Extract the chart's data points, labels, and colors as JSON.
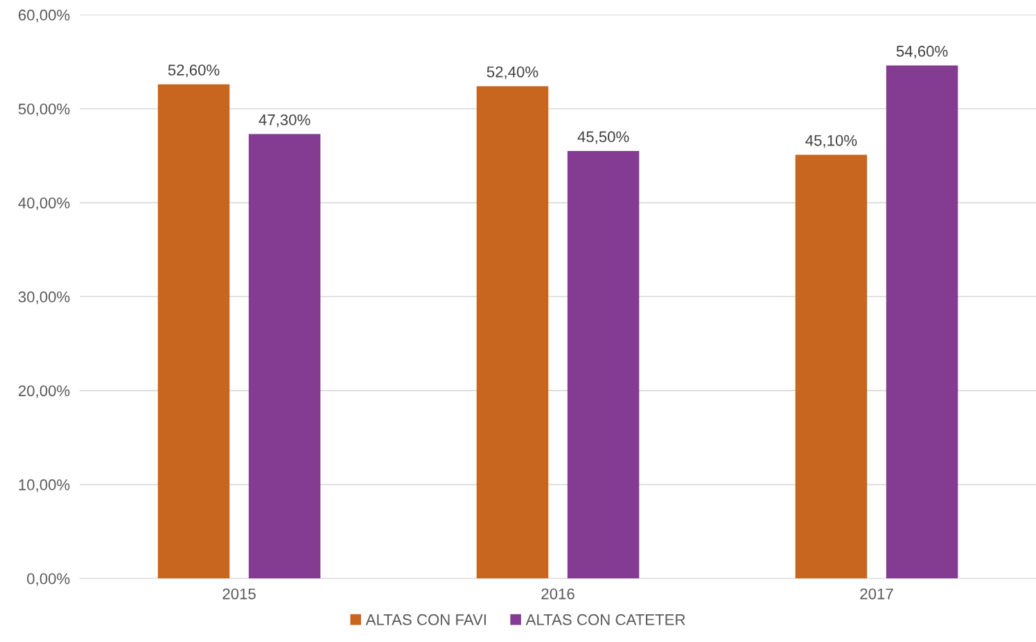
{
  "chart_data": {
    "type": "bar",
    "categories": [
      "2015",
      "2016",
      "2017"
    ],
    "series": [
      {
        "name": "ALTAS CON FAVI",
        "color": "#c8651e",
        "values": [
          52.6,
          52.4,
          45.1
        ],
        "value_labels": [
          "52,60%",
          "52,40%",
          "45,10%"
        ]
      },
      {
        "name": "ALTAS CON CATETER",
        "color": "#843c93",
        "values": [
          47.3,
          45.5,
          54.6
        ],
        "value_labels": [
          "47,30%",
          "45,50%",
          "54,60%"
        ]
      }
    ],
    "ylim": [
      0,
      60
    ],
    "yticks": [
      {
        "value": 0,
        "label": "0,00%"
      },
      {
        "value": 10,
        "label": "10,00%"
      },
      {
        "value": 20,
        "label": "20,00%"
      },
      {
        "value": 30,
        "label": "30,00%"
      },
      {
        "value": 40,
        "label": "40,00%"
      },
      {
        "value": 50,
        "label": "50,00%"
      },
      {
        "value": 60,
        "label": "60,00%"
      }
    ],
    "grid": "y",
    "legend": "bottom"
  }
}
